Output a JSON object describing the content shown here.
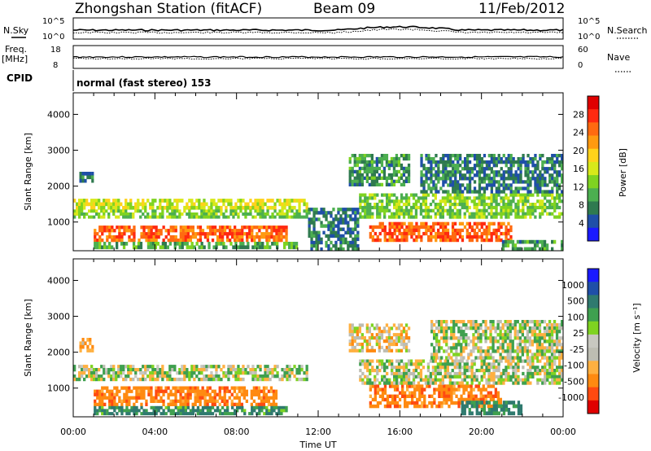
{
  "header": {
    "station": "Zhongshan Station (fitACF)",
    "beam": "Beam 09",
    "date": "11/Feb/2012"
  },
  "noise_panel": {
    "left_label": "N.Sky",
    "right_label": "N.Search",
    "left_ticks": [
      "10^5",
      "10^0"
    ],
    "right_ticks": [
      "10^5",
      "10^0"
    ]
  },
  "freq_panel": {
    "left_label_line1": "Freq.",
    "left_label_line2": "[MHz]",
    "right_label": "Nave",
    "left_ticks": [
      "18",
      "8"
    ],
    "right_ticks": [
      "60",
      "0"
    ]
  },
  "cpid": {
    "label": "CPID",
    "text": "normal (fast stereo) 153"
  },
  "time_axis": {
    "label": "Time UT",
    "ticks": [
      "00:00",
      "04:00",
      "08:00",
      "12:00",
      "16:00",
      "20:00",
      "00:00"
    ]
  },
  "colors": {
    "power_scale": [
      "#1a1aff",
      "#1f4fa8",
      "#2f7a4f",
      "#4caf50",
      "#7fd321",
      "#d8e81a",
      "#ffd21a",
      "#ff9a10",
      "#ff6a10",
      "#ff2a10",
      "#e00000"
    ],
    "velocity_scale": [
      "#e00000",
      "#ff4a10",
      "#ff8a10",
      "#ffb040",
      "#bdbdb2",
      "#c8c8c0",
      "#7fd321",
      "#3fa04f",
      "#2f7a6f",
      "#1f4fa8",
      "#1a1aff"
    ]
  },
  "chart_data": [
    {
      "type": "heatmap",
      "ylabel": "Slant Range [km]",
      "xlabel": "",
      "x_ticks": [
        "00:00",
        "04:00",
        "08:00",
        "12:00",
        "16:00",
        "20:00",
        "00:00"
      ],
      "y_ticks": [
        "1000",
        "2000",
        "3000",
        "4000"
      ],
      "ylim": [
        200,
        4600
      ],
      "xlim": [
        0,
        24
      ],
      "colorbar": {
        "label": "Power [dB]",
        "ticks": [
          "4",
          "8",
          "12",
          "16",
          "20",
          "24",
          "28"
        ],
        "range": [
          0,
          32
        ]
      },
      "regions": [
        {
          "x0": 0.0,
          "x1": 11.5,
          "y0": 1350,
          "y1": 1650,
          "v": 16
        },
        {
          "x0": 0.0,
          "x1": 11.5,
          "y0": 1100,
          "y1": 1350,
          "v": 12
        },
        {
          "x0": 1.0,
          "x1": 10.5,
          "y0": 450,
          "y1": 900,
          "v": 26
        },
        {
          "x0": 1.0,
          "x1": 11.0,
          "y0": 250,
          "y1": 450,
          "v": 10
        },
        {
          "x0": 0.3,
          "x1": 1.0,
          "y0": 2100,
          "y1": 2400,
          "v": 6
        },
        {
          "x0": 13.5,
          "x1": 16.5,
          "y0": 2000,
          "y1": 2900,
          "v": 8
        },
        {
          "x0": 14.5,
          "x1": 21.5,
          "y0": 450,
          "y1": 1000,
          "v": 26
        },
        {
          "x0": 14.0,
          "x1": 24.0,
          "y0": 1100,
          "y1": 1800,
          "v": 12
        },
        {
          "x0": 17.0,
          "x1": 24.0,
          "y0": 1800,
          "y1": 2900,
          "v": 6
        },
        {
          "x0": 21.0,
          "x1": 24.0,
          "y0": 200,
          "y1": 500,
          "v": 8
        },
        {
          "x0": 11.5,
          "x1": 14.0,
          "y0": 200,
          "y1": 1400,
          "v": 6
        }
      ]
    },
    {
      "type": "heatmap",
      "ylabel": "Slant Range [km]",
      "xlabel": "Time UT",
      "x_ticks": [
        "00:00",
        "04:00",
        "08:00",
        "12:00",
        "16:00",
        "20:00",
        "00:00"
      ],
      "y_ticks": [
        "1000",
        "2000",
        "3000",
        "4000"
      ],
      "ylim": [
        200,
        4600
      ],
      "xlim": [
        0,
        24
      ],
      "colorbar": {
        "label": "Velocity [m s⁻¹]",
        "ticks": [
          "1000",
          "500",
          "100",
          "25",
          "-25",
          "-100",
          "-500",
          "-1000"
        ]
      },
      "regions": [
        {
          "x0": 0.0,
          "x1": 11.5,
          "y0": 1200,
          "y1": 1650,
          "v": 0
        },
        {
          "x0": 1.0,
          "x1": 10.0,
          "y0": 500,
          "y1": 1050,
          "v": -300
        },
        {
          "x0": 1.0,
          "x1": 10.5,
          "y0": 250,
          "y1": 500,
          "v": 200
        },
        {
          "x0": 0.3,
          "x1": 1.0,
          "y0": 2000,
          "y1": 2400,
          "v": -150
        },
        {
          "x0": 14.5,
          "x1": 21.0,
          "y0": 450,
          "y1": 1100,
          "v": -300
        },
        {
          "x0": 14.0,
          "x1": 24.0,
          "y0": 1100,
          "y1": 1800,
          "v": 0
        },
        {
          "x0": 17.5,
          "x1": 24.0,
          "y0": 1800,
          "y1": 2900,
          "v": 0
        },
        {
          "x0": 19.0,
          "x1": 22.0,
          "y0": 250,
          "y1": 650,
          "v": 200
        },
        {
          "x0": 13.5,
          "x1": 16.5,
          "y0": 2000,
          "y1": 2800,
          "v": -100
        }
      ]
    }
  ]
}
